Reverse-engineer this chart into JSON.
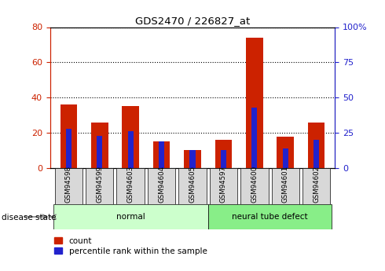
{
  "title": "GDS2470 / 226827_at",
  "samples": [
    "GSM94598",
    "GSM94599",
    "GSM94603",
    "GSM94604",
    "GSM94605",
    "GSM94597",
    "GSM94600",
    "GSM94601",
    "GSM94602"
  ],
  "count_values": [
    36,
    26,
    35,
    15,
    10,
    16,
    74,
    18,
    26
  ],
  "percentile_values": [
    28,
    23,
    26,
    19,
    13,
    13,
    43,
    14,
    20
  ],
  "groups": [
    {
      "label": "normal",
      "start": 0,
      "end": 5
    },
    {
      "label": "neural tube defect",
      "start": 5,
      "end": 9
    }
  ],
  "left_ylim": [
    0,
    80
  ],
  "right_ylim": [
    0,
    100
  ],
  "left_yticks": [
    0,
    20,
    40,
    60,
    80
  ],
  "right_yticks": [
    0,
    25,
    50,
    75,
    100
  ],
  "right_yticklabels": [
    "0",
    "25",
    "50",
    "75",
    "100%"
  ],
  "bar_color": "#cc2200",
  "percentile_color": "#2222cc",
  "grid_color": "black",
  "grid_linestyle": ":",
  "grid_linewidth": 0.8,
  "bar_width": 0.55,
  "percentile_bar_width": 0.18,
  "legend_count_label": "count",
  "legend_percentile_label": "percentile rank within the sample",
  "disease_state_label": "disease state",
  "left_axis_color": "#cc2200",
  "right_axis_color": "#2222cc",
  "group_normal_color": "#ccffcc",
  "group_defect_color": "#88ee88",
  "tick_bg_color": "#d8d8d8",
  "fig_width": 4.9,
  "fig_height": 3.45,
  "dpi": 100
}
